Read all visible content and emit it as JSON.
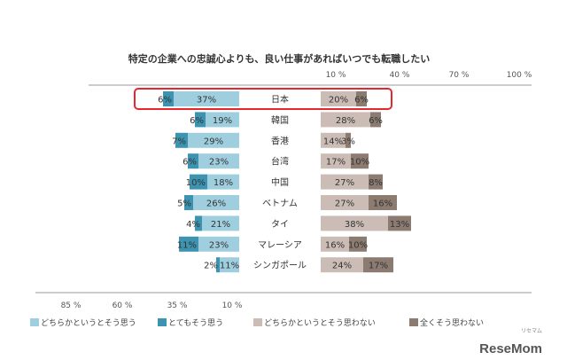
{
  "chart_data": {
    "type": "bar",
    "title": "特定の企業への忠誠心よりも、良い仕事があればいつでも転職したい",
    "categories": [
      "日本",
      "韓国",
      "香港",
      "台湾",
      "中国",
      "ベトナム",
      "タイ",
      "マレーシア",
      "シンガポール"
    ],
    "series": [
      {
        "name": "どちらかというとそう思う",
        "side": "left",
        "color": "#9fcfdf",
        "values": [
          37,
          19,
          29,
          23,
          18,
          26,
          21,
          23,
          11
        ]
      },
      {
        "name": "とてもそう思う",
        "side": "left",
        "color": "#3d94b0",
        "values": [
          6,
          6,
          7,
          6,
          10,
          5,
          4,
          11,
          2
        ]
      },
      {
        "name": "どちらかというとそう思わない",
        "side": "right",
        "color": "#cbbdb6",
        "values": [
          20,
          28,
          14,
          17,
          27,
          27,
          38,
          16,
          24
        ]
      },
      {
        "name": "全くそう思わない",
        "side": "right",
        "color": "#8c7b70",
        "values": [
          6,
          6,
          3,
          10,
          8,
          16,
          13,
          10,
          17
        ]
      }
    ],
    "left_axis_ticks": [
      "85 %",
      "60 %",
      "35 %",
      "10 %"
    ],
    "right_axis_ticks": [
      "10 %",
      "40 %",
      "70 %",
      "100 %"
    ],
    "highlight_category": "日本",
    "highlight_color": "#e8262d"
  },
  "watermark": {
    "main": "ReseMom",
    "sub": "リセマム"
  }
}
